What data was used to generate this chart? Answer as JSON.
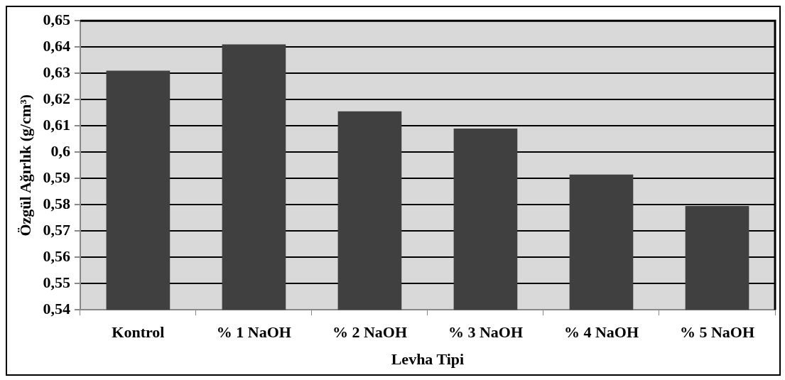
{
  "chart_data": {
    "type": "bar",
    "xlabel": "Levha Tipi",
    "ylabel": "Özgül Ağırlık (g/cm³)",
    "categories": [
      "Kontrol",
      "% 1 NaOH",
      "% 2 NaOH",
      "% 3 NaOH",
      "% 4 NaOH",
      "% 5 NaOH"
    ],
    "values": [
      0.631,
      0.641,
      0.6155,
      0.609,
      0.5915,
      0.5795
    ],
    "color": "#404040",
    "ylim": [
      0.54,
      0.65
    ],
    "yticks": [
      {
        "value": 0.54,
        "label": "0,54"
      },
      {
        "value": 0.55,
        "label": "0,55"
      },
      {
        "value": 0.56,
        "label": "0,56"
      },
      {
        "value": 0.57,
        "label": "0,57"
      },
      {
        "value": 0.58,
        "label": "0,58"
      },
      {
        "value": 0.59,
        "label": "0,59"
      },
      {
        "value": 0.6,
        "label": "0,6"
      },
      {
        "value": 0.61,
        "label": "0,61"
      },
      {
        "value": 0.62,
        "label": "0,62"
      },
      {
        "value": 0.63,
        "label": "0,63"
      },
      {
        "value": 0.64,
        "label": "0,64"
      },
      {
        "value": 0.65,
        "label": "0,65"
      }
    ],
    "grid": "y"
  }
}
